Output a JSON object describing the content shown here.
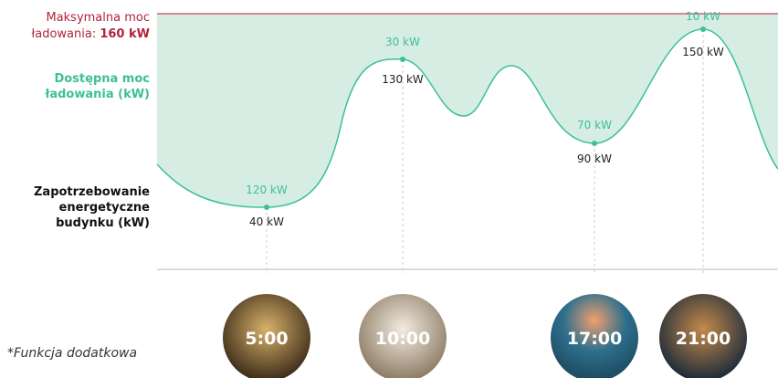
{
  "max_power": {
    "line1": "Maksymalna moc",
    "line2": "ładowania:",
    "value": "160 kW"
  },
  "available_label": [
    "Dostępna moc",
    "ładowania (kW)"
  ],
  "demand_label": [
    "Zapotrzebowanie",
    "energetyczne",
    "budynku (kW)"
  ],
  "points": [
    {
      "time": "5:00",
      "available": "120 kW",
      "demand": "40 kW"
    },
    {
      "time": "10:00",
      "available": "30 kW",
      "demand": "130 kW"
    },
    {
      "time": "17:00",
      "available": "70 kW",
      "demand": "90 kW"
    },
    {
      "time": "21:00",
      "available": "10 kW",
      "demand": "150 kW"
    }
  ],
  "footnote": "*Funkcja dodatkowa"
}
